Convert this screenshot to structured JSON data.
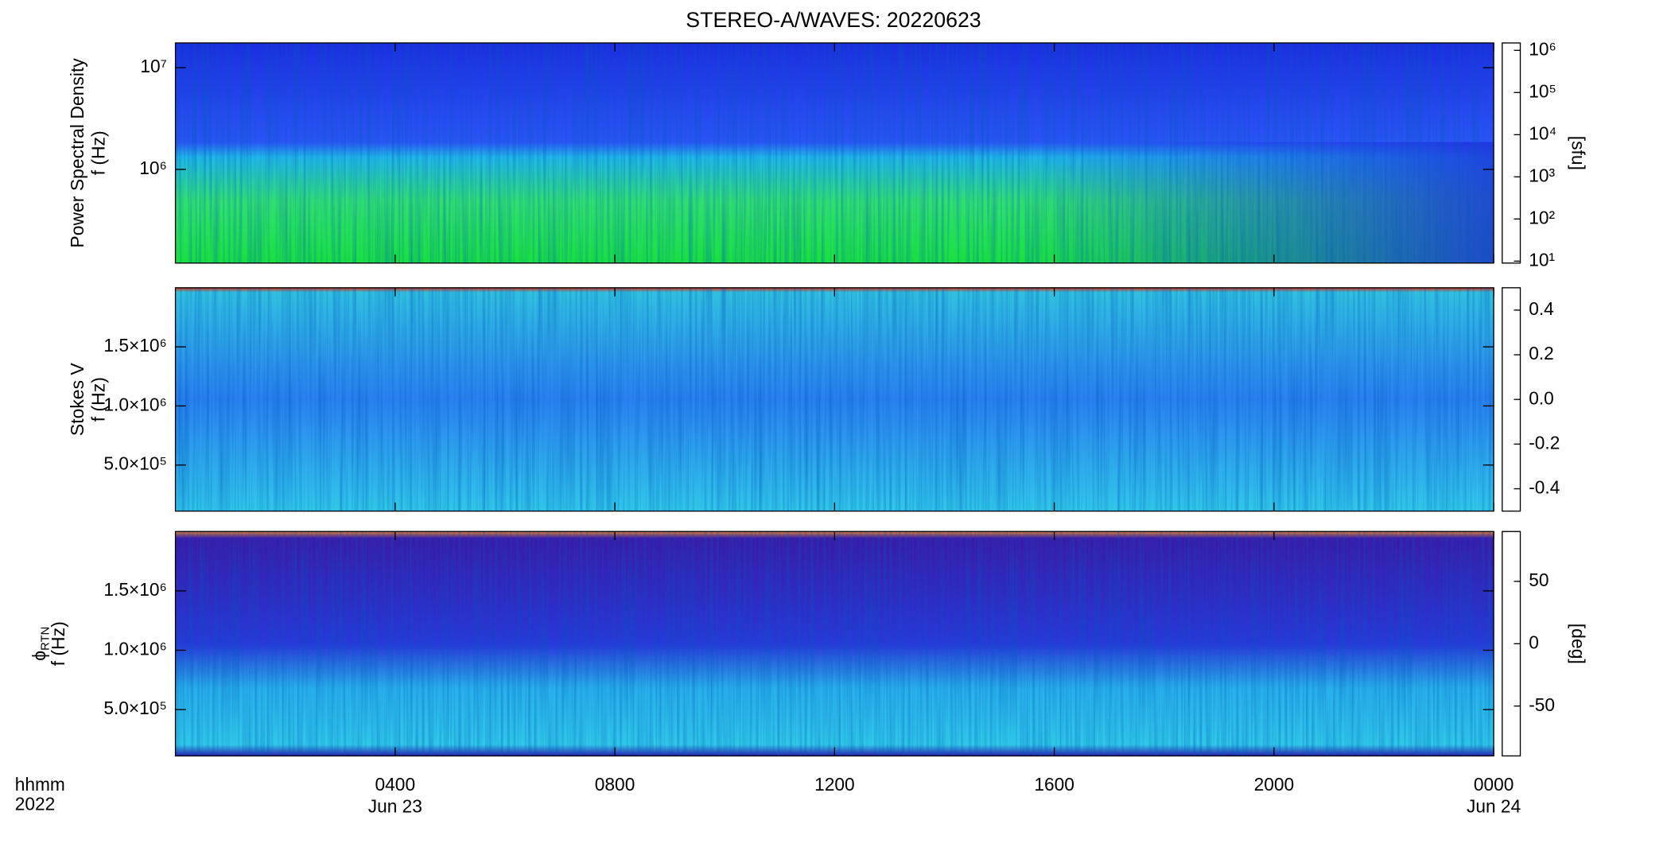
{
  "title": "STEREO-A/WAVES: 20220623",
  "x_axis": {
    "xlim": [
      0,
      24
    ],
    "xticks": [
      {
        "value": 4,
        "label": "0400"
      },
      {
        "value": 8,
        "label": "0800"
      },
      {
        "value": 12,
        "label": "1200"
      },
      {
        "value": 16,
        "label": "1600"
      },
      {
        "value": 20,
        "label": "2000"
      },
      {
        "value": 24,
        "label": "0000"
      }
    ],
    "date_labels": [
      {
        "value": 4,
        "label": "Jun 23"
      },
      {
        "value": 24,
        "label": "Jun 24"
      }
    ],
    "corner_labels": [
      "hhmm",
      "2022"
    ]
  },
  "chart_data": [
    {
      "type": "spectrogram",
      "ylabel_top": "Power Spectral Density",
      "ylabel": "f (Hz)",
      "yscale": "log",
      "ylim": [
        120000,
        17500000
      ],
      "yticks": [
        {
          "value": 1000000,
          "label": "10⁶"
        },
        {
          "value": 10000000,
          "label": "10⁷"
        }
      ],
      "colorbar": {
        "label": "[sfu]",
        "scale": "log",
        "lim": [
          9,
          1500000
        ],
        "ticks": [
          {
            "value": 10,
            "label": "10¹"
          },
          {
            "value": 100,
            "label": "10²"
          },
          {
            "value": 1000,
            "label": "10³"
          },
          {
            "value": 10000,
            "label": "10⁴"
          },
          {
            "value": 100000,
            "label": "10⁵"
          },
          {
            "value": 1000000,
            "label": "10⁶"
          }
        ]
      }
    },
    {
      "type": "spectrogram",
      "ylabel_top": "Stokes V",
      "ylabel": "f (Hz)",
      "yscale": "linear",
      "ylim": [
        110000,
        2000000
      ],
      "yticks": [
        {
          "value": 500000,
          "label": "5.0×10⁵"
        },
        {
          "value": 1000000,
          "label": "1.0×10⁶"
        },
        {
          "value": 1500000,
          "label": "1.5×10⁶"
        }
      ],
      "colorbar": {
        "scale": "linear",
        "lim": [
          -0.5,
          0.5
        ],
        "ticks": [
          -0.4,
          -0.2,
          {
            "value": 0,
            "label": "0.0"
          },
          0.2,
          0.4
        ]
      }
    },
    {
      "type": "spectrogram",
      "ylabel_top": "ϕ",
      "ylabel_top_sub": "RTN",
      "ylabel": "f (Hz)",
      "yscale": "linear",
      "ylim": [
        110000,
        2000000
      ],
      "yticks": [
        {
          "value": 500000,
          "label": "5.0×10⁵"
        },
        {
          "value": 1000000,
          "label": "1.0×10⁶"
        },
        {
          "value": 1500000,
          "label": "1.5×10⁶"
        }
      ],
      "colorbar": {
        "label": "[deg]",
        "scale": "linear",
        "lim": [
          -90,
          90
        ],
        "ticks": [
          -50,
          0,
          50
        ]
      }
    }
  ]
}
